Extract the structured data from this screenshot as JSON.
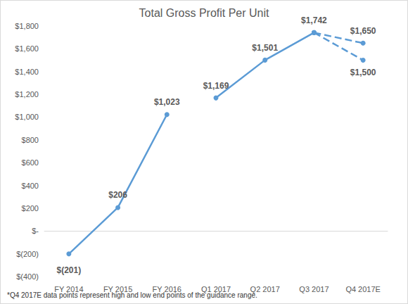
{
  "chart_data": {
    "type": "line",
    "title": "Total Gross Profit Per Unit",
    "footnote": "*Q4 2017E data points represent high and low end points of the guidance range.",
    "categories": [
      "FY 2014",
      "FY 2015",
      "FY 2016",
      "Q1 2017",
      "Q2 2017",
      "Q3 2017",
      "Q4 2017E"
    ],
    "series": [
      {
        "color": "#5b9bd5",
        "line_style": "solid",
        "marker": "circle",
        "values": [
          -201,
          206,
          1023,
          null,
          null,
          null,
          null
        ],
        "value_labels": [
          "$(201)",
          "$206",
          "$1,023",
          null,
          null,
          null,
          null
        ]
      },
      {
        "color": "#5b9bd5",
        "line_style": "solid",
        "marker": "circle",
        "values": [
          null,
          null,
          null,
          1169,
          1501,
          1742,
          null
        ],
        "value_labels": [
          null,
          null,
          null,
          "$1,169",
          "$1,501",
          "$1,742",
          null
        ]
      },
      {
        "color": "#5b9bd5",
        "line_style": "dashed",
        "marker": "circle",
        "values": [
          null,
          null,
          null,
          null,
          null,
          1742,
          1650
        ],
        "value_labels": [
          null,
          null,
          null,
          null,
          null,
          null,
          "$1,650"
        ]
      },
      {
        "color": "#5b9bd5",
        "line_style": "dashed",
        "marker": "circle",
        "values": [
          null,
          null,
          null,
          null,
          null,
          1742,
          1500
        ],
        "value_labels": [
          null,
          null,
          null,
          null,
          null,
          null,
          "$1,500"
        ]
      }
    ],
    "ylim": [
      -400,
      1800
    ],
    "yticks": [
      {
        "value": -400,
        "label": "$(400)"
      },
      {
        "value": -200,
        "label": "$(200)"
      },
      {
        "value": 0,
        "label": "$-"
      },
      {
        "value": 200,
        "label": "$200"
      },
      {
        "value": 400,
        "label": "$400"
      },
      {
        "value": 600,
        "label": "$600"
      },
      {
        "value": 800,
        "label": "$800"
      },
      {
        "value": 1000,
        "label": "$1,000"
      },
      {
        "value": 1200,
        "label": "$1,200"
      },
      {
        "value": 1400,
        "label": "$1,400"
      },
      {
        "value": 1600,
        "label": "$1,600"
      },
      {
        "value": 1800,
        "label": "$1,800"
      }
    ],
    "grid": false,
    "data_labels": true
  }
}
